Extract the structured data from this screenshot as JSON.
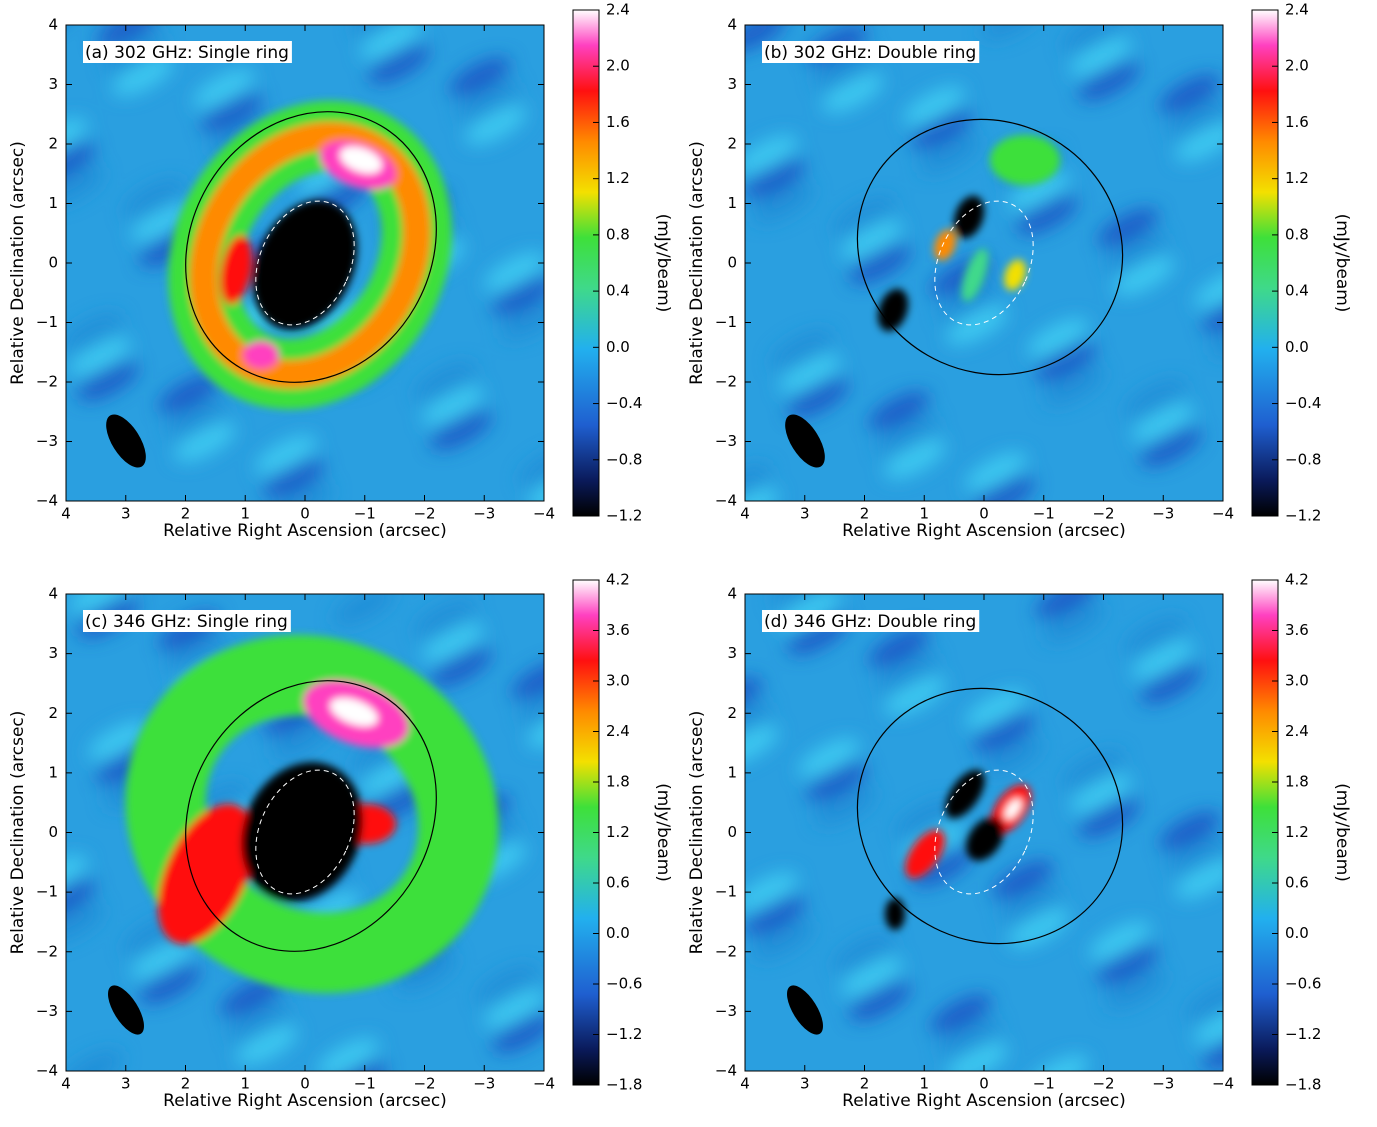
{
  "chart_data": [
    {
      "type": "image",
      "title": "(a) 302 GHz: Single ring",
      "x_label": "Relative Right Ascension (arcsec)",
      "y_label": "Relative Declination (arcsec)",
      "colorbar_label": "(mJy/beam)",
      "xlim": [
        4,
        -4
      ],
      "ylim": [
        -4,
        4
      ],
      "xticks": [
        4,
        3,
        2,
        1,
        0,
        {
          "value": -1,
          "label": "−1"
        },
        {
          "value": -2,
          "label": "−2"
        },
        {
          "value": -3,
          "label": "−3"
        },
        {
          "value": -4,
          "label": "−4"
        }
      ],
      "yticks": [
        {
          "value": -4,
          "label": "−4"
        },
        {
          "value": -3,
          "label": "−3"
        },
        {
          "value": -2,
          "label": "−2"
        },
        {
          "value": -1,
          "label": "−1"
        },
        0,
        1,
        2,
        3,
        4
      ],
      "clim": [
        -1.2,
        2.4
      ],
      "cticks": [
        {
          "value": -1.2,
          "label": "−1.2"
        },
        {
          "value": -0.8,
          "label": "−0.8"
        },
        {
          "value": -0.4,
          "label": "−0.4"
        },
        {
          "value": 0,
          "label": "0.0"
        },
        0.4,
        0.8,
        1.2,
        1.6,
        {
          "value": 2,
          "label": "2.0"
        },
        2.4
      ]
    },
    {
      "type": "image",
      "title": "(b) 302 GHz: Double ring",
      "x_label": "Relative Right Ascension (arcsec)",
      "y_label": "Relative Declination (arcsec)",
      "colorbar_label": "(mJy/beam)",
      "xlim": [
        4,
        -4
      ],
      "ylim": [
        -4,
        4
      ],
      "xticks": [
        4,
        3,
        2,
        1,
        0,
        {
          "value": -1,
          "label": "−1"
        },
        {
          "value": -2,
          "label": "−2"
        },
        {
          "value": -3,
          "label": "−3"
        },
        {
          "value": -4,
          "label": "−4"
        }
      ],
      "yticks": [
        {
          "value": -4,
          "label": "−4"
        },
        {
          "value": -3,
          "label": "−3"
        },
        {
          "value": -2,
          "label": "−2"
        },
        {
          "value": -1,
          "label": "−1"
        },
        0,
        1,
        2,
        3,
        4
      ],
      "clim": [
        -1.2,
        2.4
      ],
      "cticks": [
        {
          "value": -1.2,
          "label": "−1.2"
        },
        {
          "value": -0.8,
          "label": "−0.8"
        },
        {
          "value": -0.4,
          "label": "−0.4"
        },
        {
          "value": 0,
          "label": "0.0"
        },
        0.4,
        0.8,
        1.2,
        1.6,
        {
          "value": 2,
          "label": "2.0"
        },
        2.4
      ]
    },
    {
      "type": "image",
      "title": "(c) 346 GHz: Single ring",
      "x_label": "Relative Right Ascension (arcsec)",
      "y_label": "Relative Declination (arcsec)",
      "colorbar_label": "(mJy/beam)",
      "xlim": [
        4,
        -4
      ],
      "ylim": [
        -4,
        4
      ],
      "xticks": [
        4,
        3,
        2,
        1,
        0,
        {
          "value": -1,
          "label": "−1"
        },
        {
          "value": -2,
          "label": "−2"
        },
        {
          "value": -3,
          "label": "−3"
        },
        {
          "value": -4,
          "label": "−4"
        }
      ],
      "yticks": [
        {
          "value": -4,
          "label": "−4"
        },
        {
          "value": -3,
          "label": "−3"
        },
        {
          "value": -2,
          "label": "−2"
        },
        {
          "value": -1,
          "label": "−1"
        },
        0,
        1,
        2,
        3,
        4
      ],
      "clim": [
        -1.8,
        4.2
      ],
      "cticks": [
        {
          "value": -1.8,
          "label": "−1.8"
        },
        {
          "value": -1.2,
          "label": "−1.2"
        },
        {
          "value": -0.6,
          "label": "−0.6"
        },
        {
          "value": 0,
          "label": "0.0"
        },
        0.6,
        1.2,
        1.8,
        2.4,
        {
          "value": 3,
          "label": "3.0"
        },
        3.6,
        4.2
      ]
    },
    {
      "type": "image",
      "title": "(d) 346 GHz: Double ring",
      "x_label": "Relative Right Ascension (arcsec)",
      "y_label": "Relative Declination (arcsec)",
      "colorbar_label": "(mJy/beam)",
      "xlim": [
        4,
        -4
      ],
      "ylim": [
        -4,
        4
      ],
      "xticks": [
        4,
        3,
        2,
        1,
        0,
        {
          "value": -1,
          "label": "−1"
        },
        {
          "value": -2,
          "label": "−2"
        },
        {
          "value": -3,
          "label": "−3"
        },
        {
          "value": -4,
          "label": "−4"
        }
      ],
      "yticks": [
        {
          "value": -4,
          "label": "−4"
        },
        {
          "value": -3,
          "label": "−3"
        },
        {
          "value": -2,
          "label": "−2"
        },
        {
          "value": -1,
          "label": "−1"
        },
        0,
        1,
        2,
        3,
        4
      ],
      "clim": [
        -1.8,
        4.2
      ],
      "cticks": [
        {
          "value": -1.8,
          "label": "−1.8"
        },
        {
          "value": -1.2,
          "label": "−1.2"
        },
        {
          "value": -0.6,
          "label": "−0.6"
        },
        {
          "value": 0,
          "label": "0.0"
        },
        0.6,
        1.2,
        1.8,
        2.4,
        {
          "value": 3,
          "label": "3.0"
        },
        3.6,
        4.2
      ]
    }
  ]
}
